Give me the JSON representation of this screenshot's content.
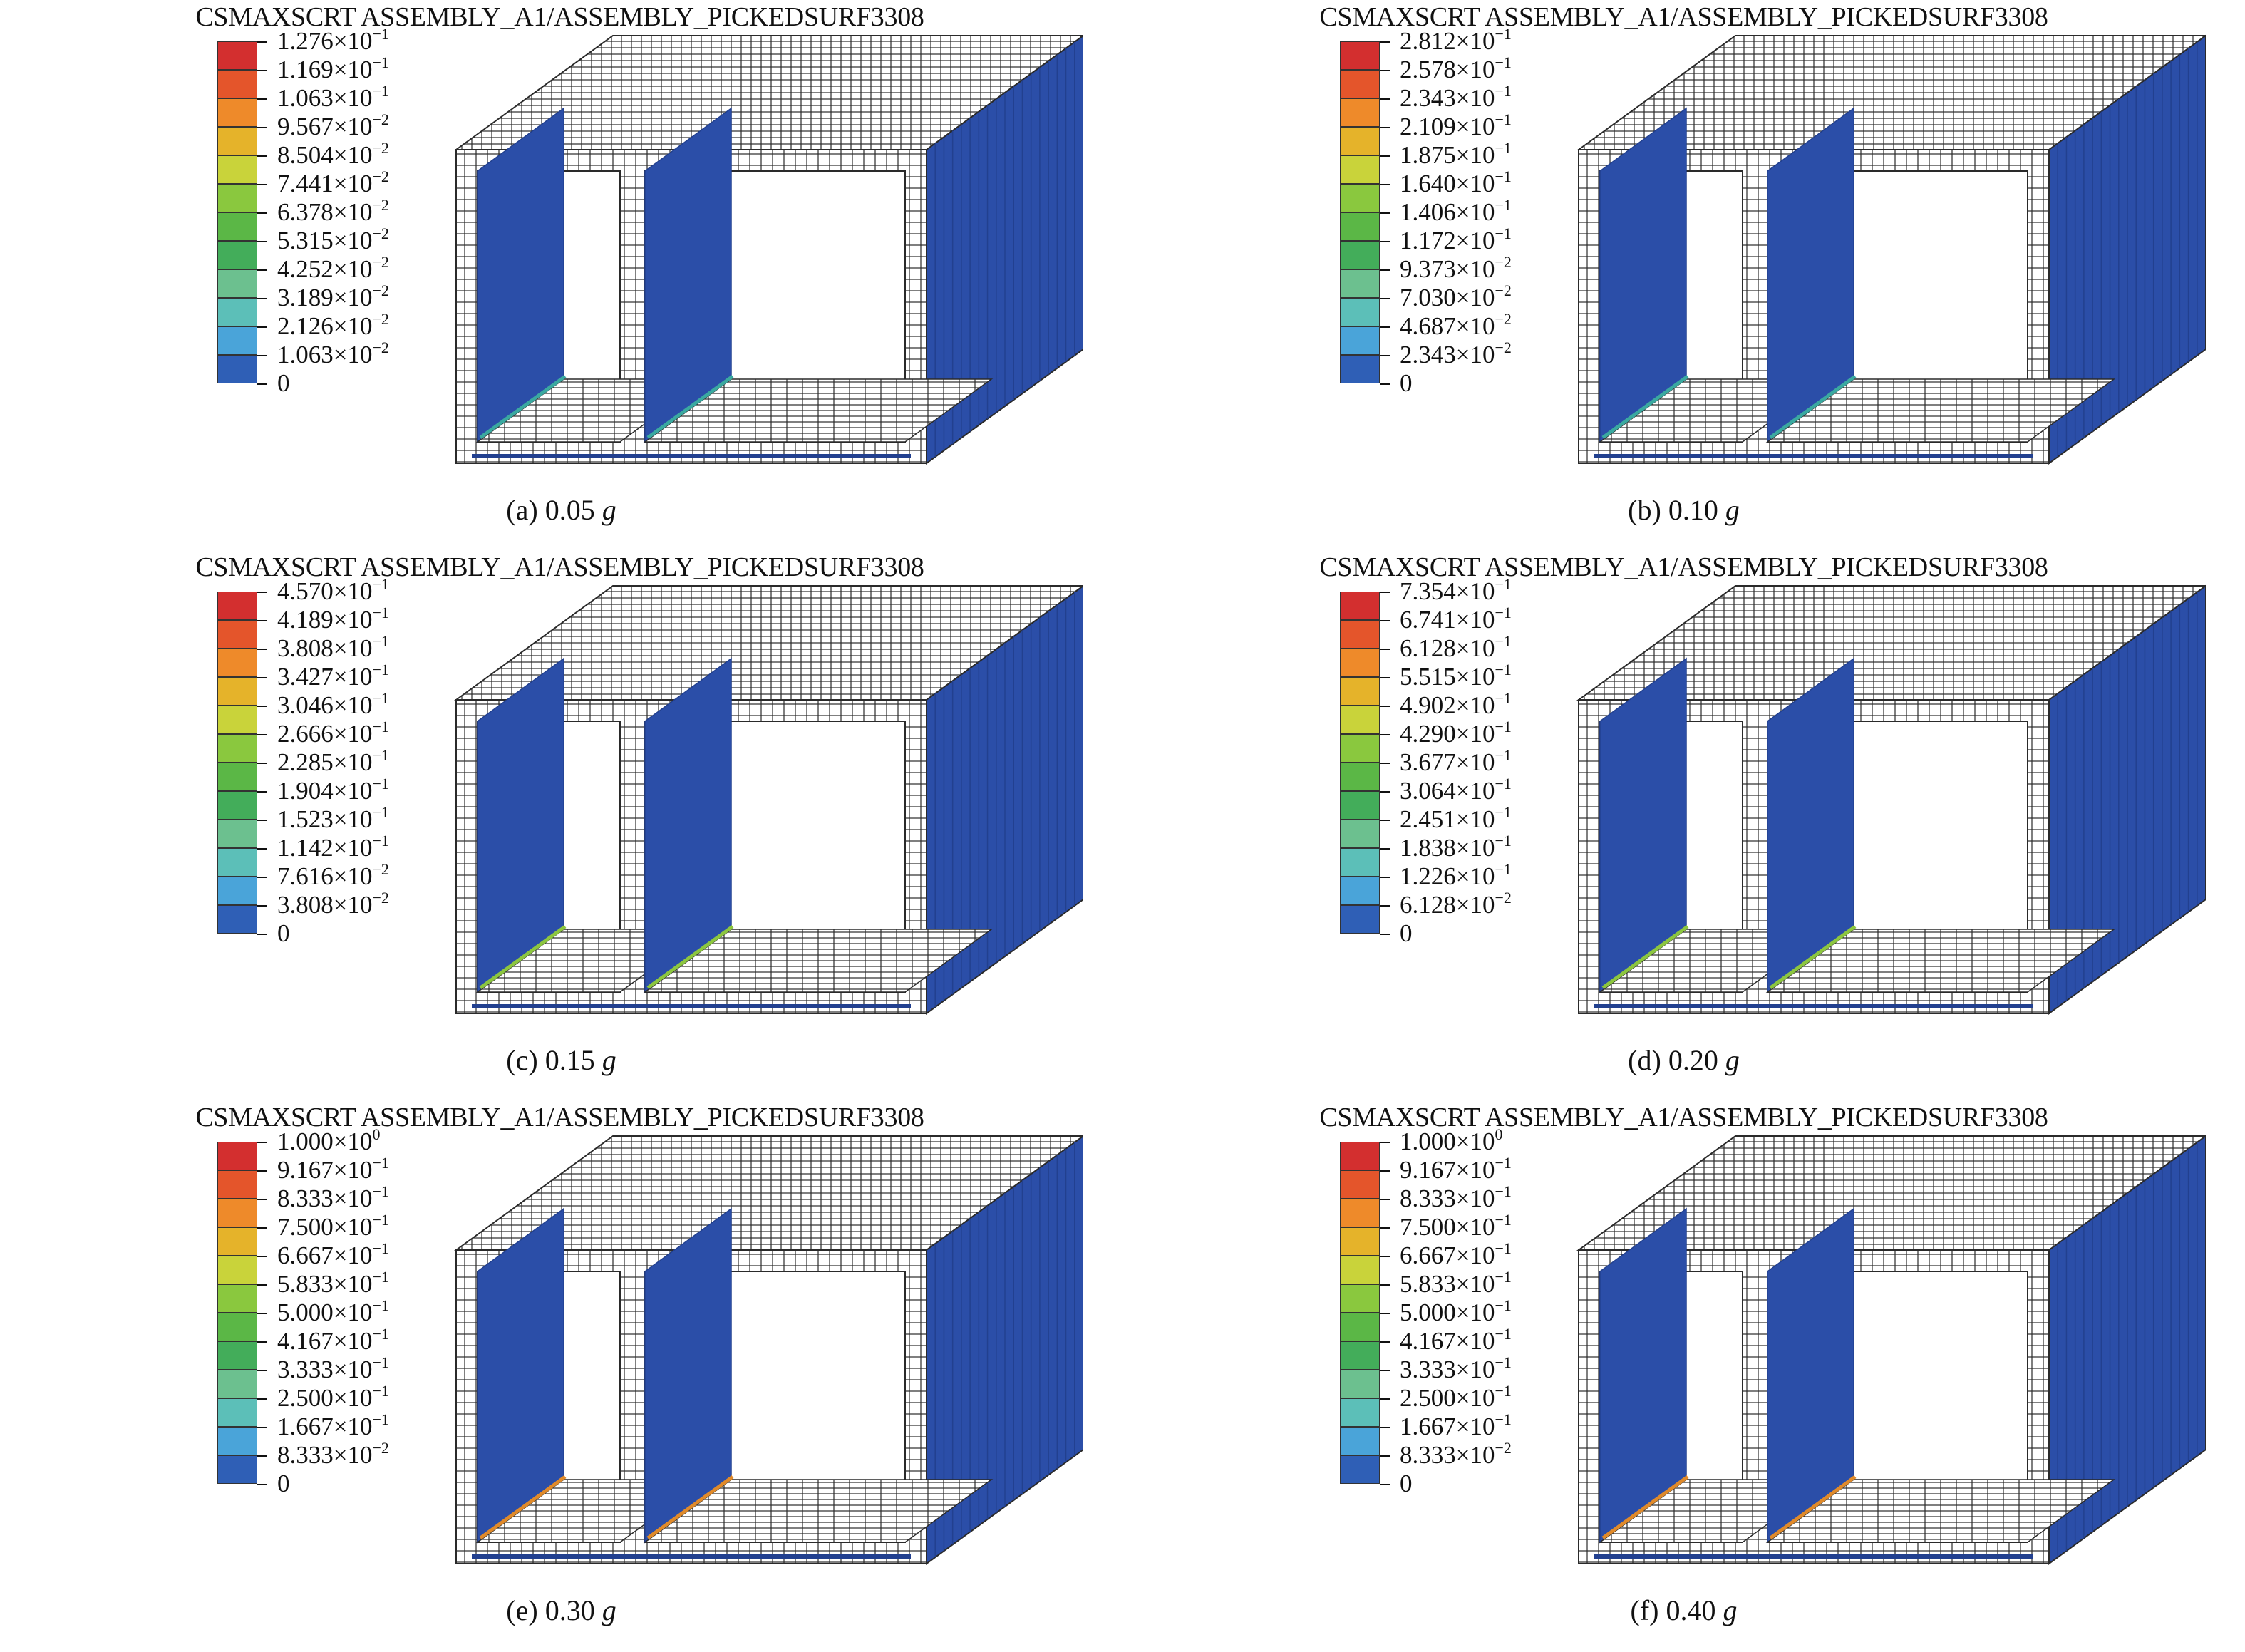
{
  "panels": [
    {
      "title": "CSMAXSCRT ASSEMBLY_A1/ASSEMBLY_PICKEDSURF3308",
      "caption_prefix": "(a) 0.05",
      "caption_unit": "g",
      "legend": [
        {
          "mant": "1.276×10",
          "exp": "−1"
        },
        {
          "mant": "1.169×10",
          "exp": "−1"
        },
        {
          "mant": "1.063×10",
          "exp": "−1"
        },
        {
          "mant": "9.567×10",
          "exp": "−2"
        },
        {
          "mant": "8.504×10",
          "exp": "−2"
        },
        {
          "mant": "7.441×10",
          "exp": "−2"
        },
        {
          "mant": "6.378×10",
          "exp": "−2"
        },
        {
          "mant": "5.315×10",
          "exp": "−2"
        },
        {
          "mant": "4.252×10",
          "exp": "−2"
        },
        {
          "mant": "3.189×10",
          "exp": "−2"
        },
        {
          "mant": "2.126×10",
          "exp": "−2"
        },
        {
          "mant": "1.063×10",
          "exp": "−2"
        },
        {
          "mant": "0",
          "exp": ""
        }
      ]
    },
    {
      "title": "CSMAXSCRT ASSEMBLY_A1/ASSEMBLY_PICKEDSURF3308",
      "caption_prefix": "(b) 0.10",
      "caption_unit": "g",
      "legend": [
        {
          "mant": "2.812×10",
          "exp": "−1"
        },
        {
          "mant": "2.578×10",
          "exp": "−1"
        },
        {
          "mant": "2.343×10",
          "exp": "−1"
        },
        {
          "mant": "2.109×10",
          "exp": "−1"
        },
        {
          "mant": "1.875×10",
          "exp": "−1"
        },
        {
          "mant": "1.640×10",
          "exp": "−1"
        },
        {
          "mant": "1.406×10",
          "exp": "−1"
        },
        {
          "mant": "1.172×10",
          "exp": "−1"
        },
        {
          "mant": "9.373×10",
          "exp": "−2"
        },
        {
          "mant": "7.030×10",
          "exp": "−2"
        },
        {
          "mant": "4.687×10",
          "exp": "−2"
        },
        {
          "mant": "2.343×10",
          "exp": "−2"
        },
        {
          "mant": "0",
          "exp": ""
        }
      ]
    },
    {
      "title": "CSMAXSCRT ASSEMBLY_A1/ASSEMBLY_PICKEDSURF3308",
      "caption_prefix": "(c) 0.15",
      "caption_unit": "g",
      "legend": [
        {
          "mant": "4.570×10",
          "exp": "−1"
        },
        {
          "mant": "4.189×10",
          "exp": "−1"
        },
        {
          "mant": "3.808×10",
          "exp": "−1"
        },
        {
          "mant": "3.427×10",
          "exp": "−1"
        },
        {
          "mant": "3.046×10",
          "exp": "−1"
        },
        {
          "mant": "2.666×10",
          "exp": "−1"
        },
        {
          "mant": "2.285×10",
          "exp": "−1"
        },
        {
          "mant": "1.904×10",
          "exp": "−1"
        },
        {
          "mant": "1.523×10",
          "exp": "−1"
        },
        {
          "mant": "1.142×10",
          "exp": "−1"
        },
        {
          "mant": "7.616×10",
          "exp": "−2"
        },
        {
          "mant": "3.808×10",
          "exp": "−2"
        },
        {
          "mant": "0",
          "exp": ""
        }
      ]
    },
    {
      "title": "CSMAXSCRT ASSEMBLY_A1/ASSEMBLY_PICKEDSURF3308",
      "caption_prefix": "(d) 0.20",
      "caption_unit": "g",
      "legend": [
        {
          "mant": "7.354×10",
          "exp": "−1"
        },
        {
          "mant": "6.741×10",
          "exp": "−1"
        },
        {
          "mant": "6.128×10",
          "exp": "−1"
        },
        {
          "mant": "5.515×10",
          "exp": "−1"
        },
        {
          "mant": "4.902×10",
          "exp": "−1"
        },
        {
          "mant": "4.290×10",
          "exp": "−1"
        },
        {
          "mant": "3.677×10",
          "exp": "−1"
        },
        {
          "mant": "3.064×10",
          "exp": "−1"
        },
        {
          "mant": "2.451×10",
          "exp": "−1"
        },
        {
          "mant": "1.838×10",
          "exp": "−1"
        },
        {
          "mant": "1.226×10",
          "exp": "−1"
        },
        {
          "mant": "6.128×10",
          "exp": "−2"
        },
        {
          "mant": "0",
          "exp": ""
        }
      ]
    },
    {
      "title": "CSMAXSCRT ASSEMBLY_A1/ASSEMBLY_PICKEDSURF3308",
      "caption_prefix": "(e) 0.30",
      "caption_unit": "g",
      "legend": [
        {
          "mant": "1.000×10",
          "exp": "0"
        },
        {
          "mant": "9.167×10",
          "exp": "−1"
        },
        {
          "mant": "8.333×10",
          "exp": "−1"
        },
        {
          "mant": "7.500×10",
          "exp": "−1"
        },
        {
          "mant": "6.667×10",
          "exp": "−1"
        },
        {
          "mant": "5.833×10",
          "exp": "−1"
        },
        {
          "mant": "5.000×10",
          "exp": "−1"
        },
        {
          "mant": "4.167×10",
          "exp": "−1"
        },
        {
          "mant": "3.333×10",
          "exp": "−1"
        },
        {
          "mant": "2.500×10",
          "exp": "−1"
        },
        {
          "mant": "1.667×10",
          "exp": "−1"
        },
        {
          "mant": "8.333×10",
          "exp": "−2"
        },
        {
          "mant": "0",
          "exp": ""
        }
      ]
    },
    {
      "title": "CSMAXSCRT ASSEMBLY_A1/ASSEMBLY_PICKEDSURF3308",
      "caption_prefix": "(f) 0.40",
      "caption_unit": "g",
      "legend": [
        {
          "mant": "1.000×10",
          "exp": "0"
        },
        {
          "mant": "9.167×10",
          "exp": "−1"
        },
        {
          "mant": "8.333×10",
          "exp": "−1"
        },
        {
          "mant": "7.500×10",
          "exp": "−1"
        },
        {
          "mant": "6.667×10",
          "exp": "−1"
        },
        {
          "mant": "5.833×10",
          "exp": "−1"
        },
        {
          "mant": "5.000×10",
          "exp": "−1"
        },
        {
          "mant": "4.167×10",
          "exp": "−1"
        },
        {
          "mant": "3.333×10",
          "exp": "−1"
        },
        {
          "mant": "2.500×10",
          "exp": "−1"
        },
        {
          "mant": "1.667×10",
          "exp": "−1"
        },
        {
          "mant": "8.333×10",
          "exp": "−2"
        },
        {
          "mant": "0",
          "exp": ""
        }
      ]
    }
  ],
  "colormap": [
    "#d32f2f",
    "#e4552b",
    "#ee8a2a",
    "#e5b32a",
    "#c9d33a",
    "#8ac83e",
    "#5bb746",
    "#43ad5a",
    "#6cc08f",
    "#5cbfb8",
    "#4aa4d9",
    "#2f5fb6"
  ],
  "colors": {
    "mesh_fill": "#ffffff",
    "mesh_line": "#2a2a2a",
    "wall_blue": "#2b4ea8",
    "wall_dark": "#22408f",
    "crack_teal": "#3aa9a0",
    "crack_green": "#8cc63f",
    "crack_orange": "#e08a2a"
  }
}
